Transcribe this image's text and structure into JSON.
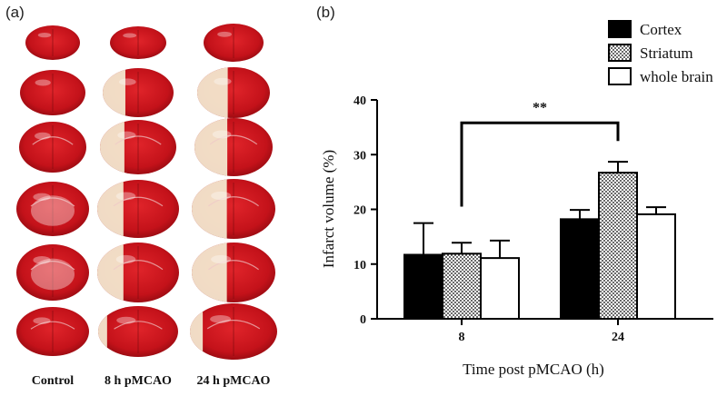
{
  "panels": {
    "a": "(a)",
    "b": "(b)"
  },
  "figure_a": {
    "column_labels": [
      "Control",
      "8 h pMCAO",
      "24 h pMCAO"
    ]
  },
  "chart_data": {
    "type": "bar",
    "categories": [
      "8",
      "24"
    ],
    "series": [
      {
        "name": "Cortex",
        "values": [
          11.7,
          18.2
        ],
        "errors": [
          5.8,
          1.7
        ],
        "pattern": "solid"
      },
      {
        "name": "Striatum",
        "values": [
          11.9,
          26.7
        ],
        "errors": [
          2.0,
          2.0
        ],
        "pattern": "dots"
      },
      {
        "name": "whole brain",
        "values": [
          11.1,
          19.1
        ],
        "errors": [
          3.2,
          1.3
        ],
        "pattern": "white"
      }
    ],
    "xlabel": "Time post pMCAO (h)",
    "ylabel": "Infarct volume (%)",
    "ylim": [
      0,
      40
    ],
    "yticks": [
      0,
      10,
      20,
      30,
      40
    ],
    "significance": {
      "label": "**",
      "from_category": "8",
      "to_category": "24",
      "series": "Striatum"
    },
    "legend_position": "top-right"
  },
  "colors": {
    "bar_fill": "#000000",
    "tissue_red": "#c8141c",
    "infarct": "#f3e7cf"
  }
}
